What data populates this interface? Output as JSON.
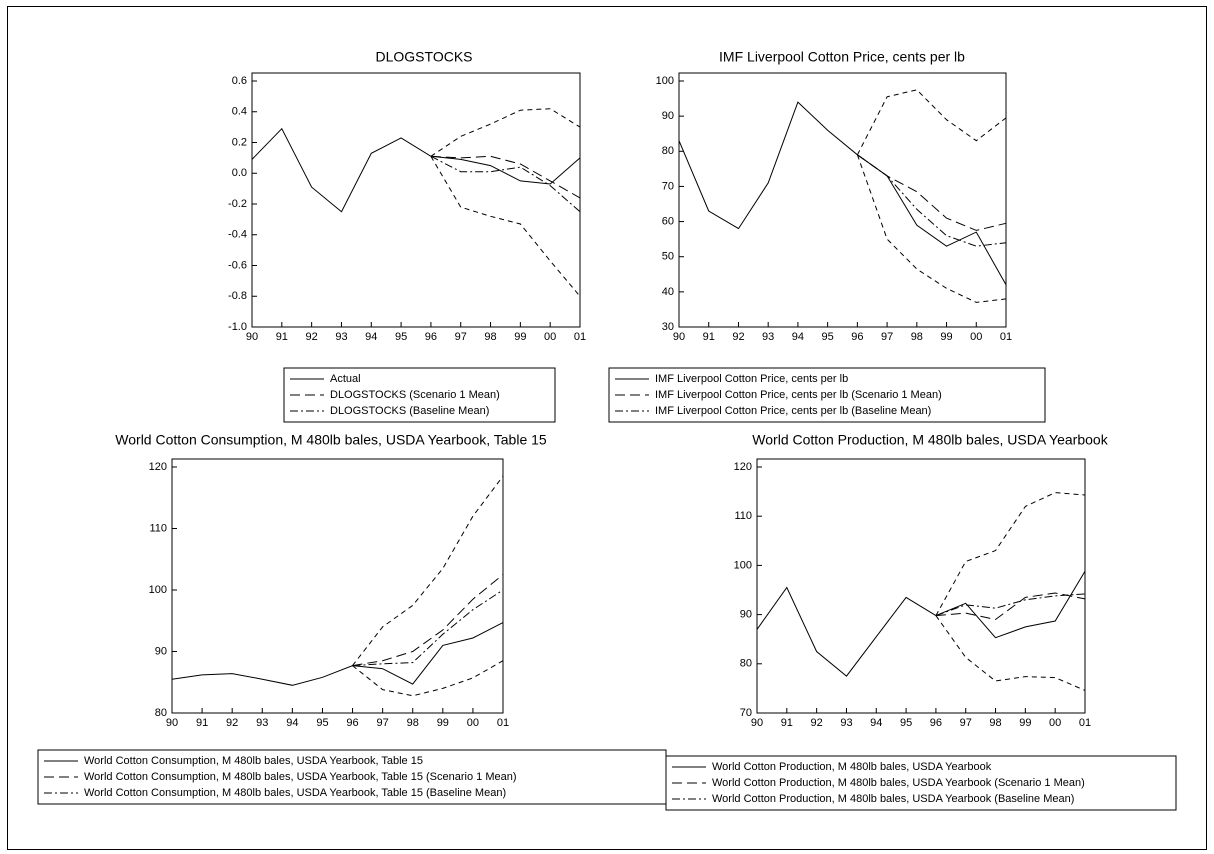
{
  "chart_data": [
    {
      "type": "line",
      "title": "DLOGSTOCKS",
      "categories": [
        "90",
        "91",
        "92",
        "93",
        "94",
        "95",
        "96",
        "97",
        "98",
        "99",
        "00",
        "01"
      ],
      "ylim": [
        -1.0,
        0.6
      ],
      "yticks": [
        {
          "value": -1.0,
          "label": "-1.0"
        },
        -0.8,
        -0.6,
        -0.4,
        -0.2,
        {
          "value": 0,
          "label": "0.0"
        },
        0.2,
        0.4,
        0.6
      ],
      "legend": "bottom",
      "series": [
        {
          "name": "Actual",
          "color": "#000000",
          "style": "solid",
          "values": [
            0.09,
            0.29,
            -0.09,
            -0.25,
            0.13,
            0.23,
            0.11,
            0.09,
            0.05,
            -0.05,
            -0.07,
            0.1
          ]
        },
        {
          "name": "DLOGSTOCKS (Scenario 1 Mean)",
          "color": "#000000",
          "style": "long-dash",
          "values": [
            null,
            null,
            null,
            null,
            null,
            null,
            0.11,
            0.1,
            0.11,
            0.06,
            -0.05,
            -0.16
          ]
        },
        {
          "name": "DLOGSTOCKS (Baseline Mean)",
          "color": "#000000",
          "style": "dash-dot",
          "values": [
            null,
            null,
            null,
            null,
            null,
            null,
            0.11,
            0.01,
            0.01,
            0.04,
            -0.08,
            -0.25
          ]
        },
        {
          "color": "#000000",
          "style": "short-dash",
          "values": [
            null,
            null,
            null,
            null,
            null,
            null,
            0.11,
            0.24,
            0.32,
            0.41,
            0.42,
            0.3
          ]
        },
        {
          "color": "#000000",
          "style": "short-dash",
          "values": [
            null,
            null,
            null,
            null,
            null,
            null,
            0.11,
            -0.22,
            -0.28,
            -0.33,
            -0.57,
            -0.8
          ]
        }
      ]
    },
    {
      "type": "line",
      "title": "IMF Liverpool Cotton Price, cents per lb",
      "categories": [
        "90",
        "91",
        "92",
        "93",
        "94",
        "95",
        "96",
        "97",
        "98",
        "99",
        "00",
        "01"
      ],
      "ylim": [
        30,
        100
      ],
      "yticks": [
        30,
        40,
        50,
        60,
        70,
        80,
        90,
        100
      ],
      "legend": "bottom",
      "series": [
        {
          "name": "IMF Liverpool Cotton Price, cents per lb",
          "color": "#000000",
          "style": "solid",
          "values": [
            83,
            63,
            58,
            71,
            94,
            86,
            79,
            73,
            59,
            53,
            57,
            42
          ]
        },
        {
          "name": "IMF Liverpool Cotton Price, cents per lb (Scenario 1 Mean)",
          "color": "#000000",
          "style": "long-dash",
          "values": [
            null,
            null,
            null,
            null,
            null,
            null,
            79,
            73,
            68.5,
            61,
            57.5,
            59.5
          ]
        },
        {
          "name": "IMF Liverpool Cotton Price, cents per lb (Baseline Mean)",
          "color": "#000000",
          "style": "dash-dot",
          "values": [
            null,
            null,
            null,
            null,
            null,
            null,
            79,
            73,
            63.5,
            56,
            53,
            54
          ]
        },
        {
          "color": "#000000",
          "style": "short-dash",
          "values": [
            null,
            null,
            null,
            null,
            null,
            null,
            79,
            95.5,
            97.5,
            89,
            83,
            89.5
          ]
        },
        {
          "color": "#000000",
          "style": "short-dash",
          "values": [
            null,
            null,
            null,
            null,
            null,
            null,
            79,
            55,
            46.5,
            41,
            37,
            38
          ]
        }
      ]
    },
    {
      "type": "line",
      "title": "World Cotton Consumption, M 480lb bales, USDA Yearbook, Table 15",
      "categories": [
        "90",
        "91",
        "92",
        "93",
        "94",
        "95",
        "96",
        "97",
        "98",
        "99",
        "00",
        "01"
      ],
      "ylim": [
        80,
        120
      ],
      "yticks": [
        80,
        90,
        100,
        110,
        120
      ],
      "legend": "bottom",
      "series": [
        {
          "name": "World Cotton Consumption, M 480lb bales, USDA Yearbook, Table 15",
          "color": "#000000",
          "style": "solid",
          "values": [
            85.5,
            86.2,
            86.4,
            85.5,
            84.5,
            85.8,
            87.7,
            87.2,
            84.7,
            91.0,
            92.2,
            94.7
          ]
        },
        {
          "name": "World Cotton Consumption, M 480lb bales, USDA Yearbook, Table 15 (Scenario 1 Mean)",
          "color": "#000000",
          "style": "long-dash",
          "values": [
            null,
            null,
            null,
            null,
            null,
            null,
            87.7,
            88.5,
            90,
            93.5,
            98.5,
            102.5
          ]
        },
        {
          "name": "World Cotton Consumption, M 480lb bales, USDA Yearbook, Table 15 (Baseline Mean)",
          "color": "#000000",
          "style": "dash-dot",
          "values": [
            null,
            null,
            null,
            null,
            null,
            null,
            87.7,
            88,
            88.2,
            92.8,
            96.8,
            100
          ]
        },
        {
          "color": "#000000",
          "style": "short-dash",
          "values": [
            null,
            null,
            null,
            null,
            null,
            null,
            87.7,
            94,
            97.5,
            103.5,
            112,
            118.5
          ]
        },
        {
          "color": "#000000",
          "style": "short-dash",
          "values": [
            null,
            null,
            null,
            null,
            null,
            null,
            87.7,
            83.8,
            82.8,
            84,
            85.7,
            88.5
          ]
        }
      ]
    },
    {
      "type": "line",
      "title": "World Cotton Production, M 480lb bales, USDA Yearbook",
      "categories": [
        "90",
        "91",
        "92",
        "93",
        "94",
        "95",
        "96",
        "97",
        "98",
        "99",
        "00",
        "01"
      ],
      "ylim": [
        70,
        120
      ],
      "yticks": [
        70,
        80,
        90,
        100,
        110,
        120
      ],
      "legend": "bottom",
      "series": [
        {
          "name": "World Cotton Production, M 480lb bales, USDA Yearbook",
          "color": "#000000",
          "style": "solid",
          "values": [
            87,
            95.5,
            82.5,
            77.5,
            85.5,
            93.5,
            89.8,
            92.3,
            85.3,
            87.5,
            88.7,
            98.8
          ]
        },
        {
          "name": "World Cotton Production, M 480lb bales, USDA Yearbook (Scenario 1 Mean)",
          "color": "#000000",
          "style": "long-dash",
          "values": [
            null,
            null,
            null,
            null,
            null,
            null,
            89.8,
            90.3,
            89,
            93.5,
            94.4,
            93.2
          ]
        },
        {
          "name": "World Cotton Production, M 480lb bales, USDA Yearbook (Baseline Mean)",
          "color": "#000000",
          "style": "dash-dot",
          "values": [
            null,
            null,
            null,
            null,
            null,
            null,
            89.8,
            92,
            91.3,
            93,
            93.8,
            94.2
          ]
        },
        {
          "color": "#000000",
          "style": "short-dash",
          "values": [
            null,
            null,
            null,
            null,
            null,
            null,
            89.8,
            100.8,
            103,
            112,
            114.8,
            114.3
          ]
        },
        {
          "color": "#000000",
          "style": "short-dash",
          "values": [
            null,
            null,
            null,
            null,
            null,
            null,
            89.8,
            81.3,
            76.5,
            77.4,
            77.2,
            74.6
          ]
        }
      ]
    }
  ]
}
